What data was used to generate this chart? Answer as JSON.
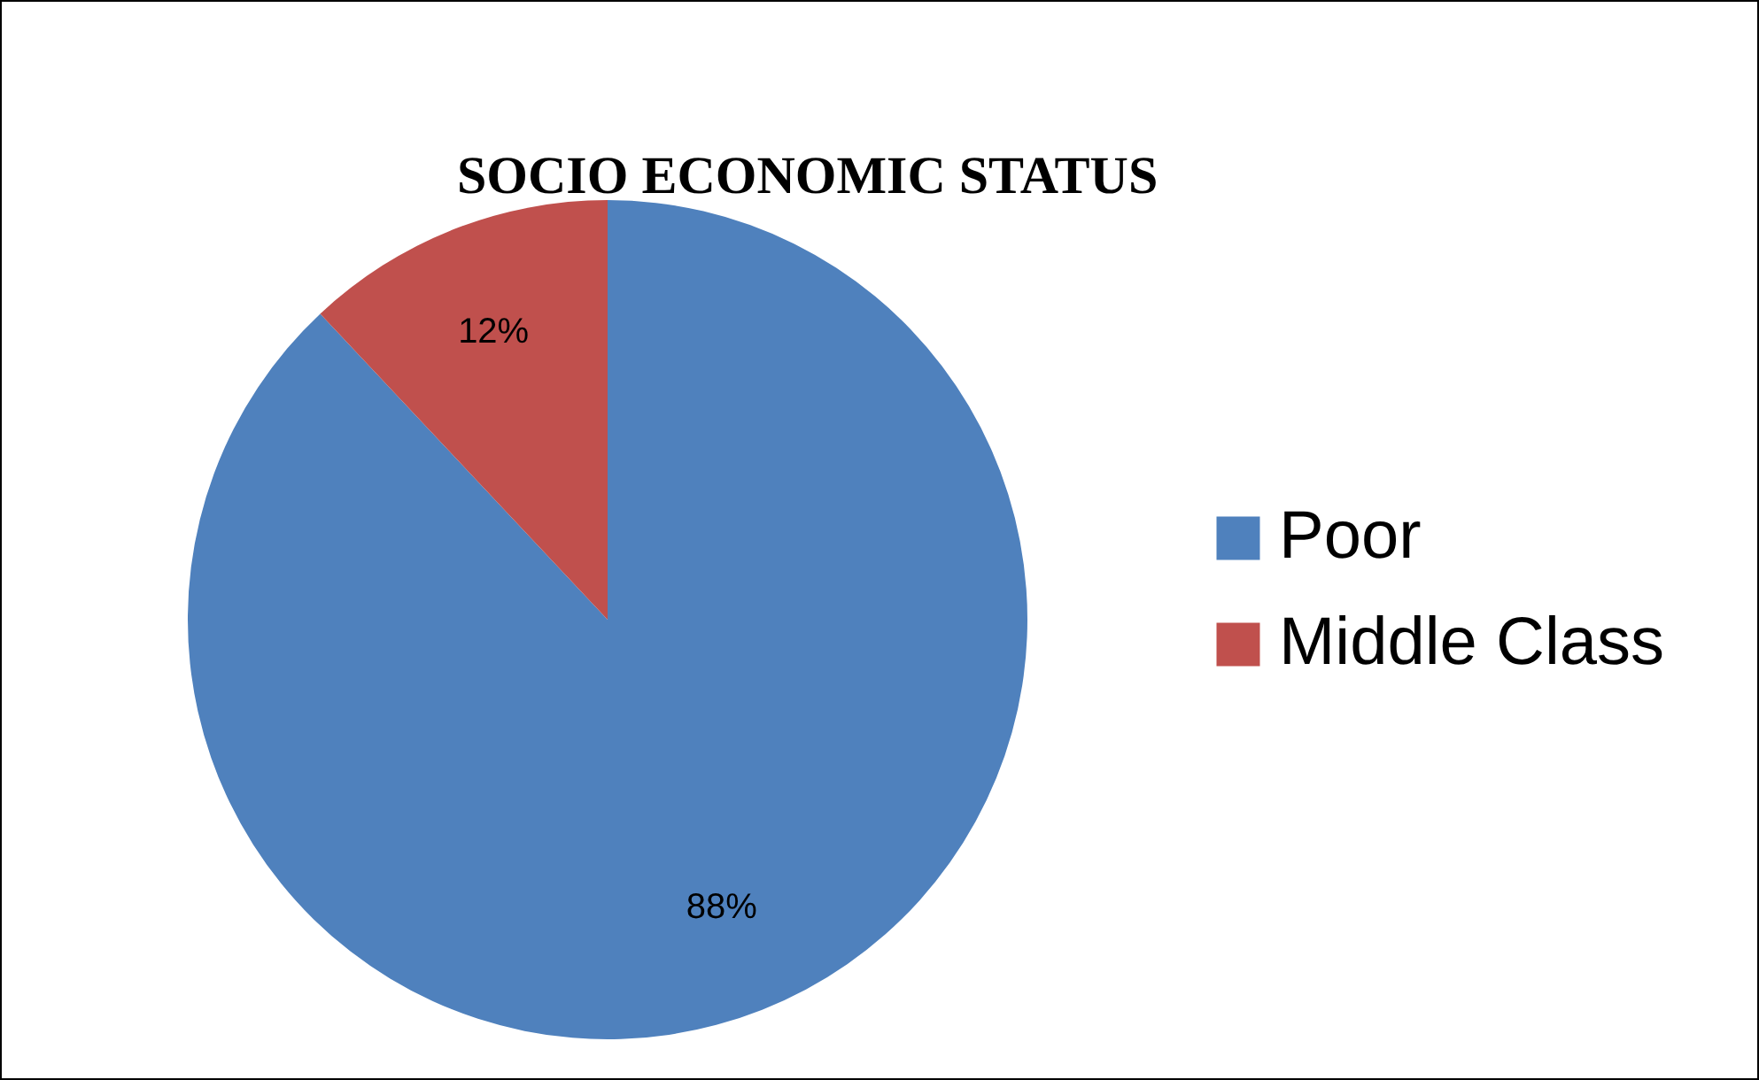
{
  "chart_data": {
    "type": "pie",
    "title": "SOCIO ECONOMIC STATUS",
    "categories": [
      "Poor",
      "Middle Class"
    ],
    "values": [
      88,
      12
    ],
    "colors": [
      "#4f81bd",
      "#c0504d"
    ],
    "value_labels": [
      "88%",
      "12%"
    ],
    "legend": "right"
  }
}
